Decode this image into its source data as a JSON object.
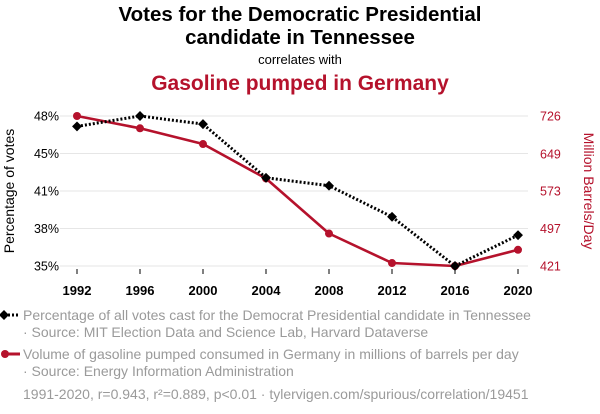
{
  "header": {
    "title_line1": "Votes for the Democratic Presidential",
    "title_line2": "candidate in Tennessee",
    "connector": "correlates with",
    "subtitle": "Gasoline pumped in Germany"
  },
  "chart_data": {
    "type": "line",
    "x": [
      1992,
      1996,
      2000,
      2004,
      2008,
      2012,
      2016,
      2020
    ],
    "xlim": [
      1992,
      2020
    ],
    "x_ticks": [
      "1992",
      "1996",
      "2000",
      "2004",
      "2008",
      "2012",
      "2016",
      "2020"
    ],
    "grid": "horizontal",
    "series": [
      {
        "key": "votes",
        "axis": "left",
        "color": "#000000",
        "style": "dotted",
        "marker": "diamond",
        "values": [
          47.08,
          48.0,
          47.28,
          42.53,
          41.83,
          39.08,
          34.72,
          37.45
        ]
      },
      {
        "key": "gasoline",
        "axis": "right",
        "color": "#b5122c",
        "style": "solid",
        "marker": "circle",
        "values": [
          726,
          701,
          669,
          599,
          487,
          427,
          421,
          454
        ]
      }
    ],
    "y_left": {
      "label": "Percentage of votes",
      "ylim": [
        34.72,
        48.0
      ],
      "ticks": [
        34.72,
        38.04,
        41.36,
        44.68,
        48.0
      ],
      "tick_labels": [
        "35%",
        "38%",
        "41%",
        "45%",
        "48%"
      ]
    },
    "y_right": {
      "label": "Million Barrels/Day",
      "ylim": [
        421,
        726
      ],
      "ticks": [
        421,
        497,
        573,
        649,
        726
      ],
      "tick_labels": [
        "421",
        "497",
        "573",
        "649",
        "726"
      ]
    }
  },
  "legend": {
    "items": [
      {
        "line1": "Percentage of all votes cast for the Democrat Presidential candidate in Tennessee",
        "line2": "· Source: MIT Election Data and Science Lab, Harvard Dataverse"
      },
      {
        "line1": "Volume of gasoline pumped consumed in Germany in millions of barrels per day",
        "line2": "· Source: Energy Information Administration"
      }
    ]
  },
  "footer": {
    "text": "1991-2020, r=0.943, r²=0.889, p<0.01 · tylervigen.com/spurious/correlation/19451"
  },
  "colors": {
    "left_series": "#000000",
    "right_series": "#b5122c",
    "grid": "#e6e6e6",
    "muted_text": "#9a9a9a"
  }
}
